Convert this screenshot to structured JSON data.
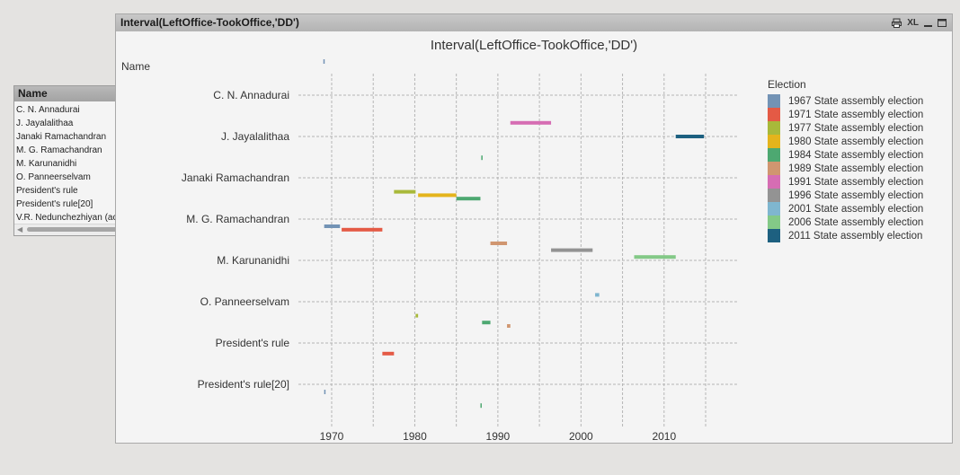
{
  "listbox": {
    "title": "Name",
    "items": [
      "C. N. Annadurai",
      "J. Jayalalithaa",
      "Janaki Ramachandran",
      "M. G. Ramachandran",
      "M. Karunanidhi",
      "O. Panneerselvam",
      "President's rule",
      "President's rule[20]",
      "V.R. Nedunchezhiyan (acting"
    ]
  },
  "window": {
    "title": "Interval(LeftOffice-TookOffice,'DD')",
    "icons": [
      "print-icon",
      "xl-icon",
      "minimize-icon",
      "maximize-icon"
    ],
    "xl_label": "XL"
  },
  "chart_data": {
    "type": "bar",
    "orientation": "gantt",
    "title": "Interval(LeftOffice-TookOffice,'DD')",
    "ylabel": "Name",
    "xlim": [
      1966,
      2019
    ],
    "xticks": [
      1970,
      1980,
      1990,
      2000,
      2010
    ],
    "grid": true,
    "legend_title": "Election",
    "legend_position": "right",
    "categories": [
      "C. N. Annadurai",
      "J. Jayalalithaa",
      "Janaki Ramachandran",
      "M. G. Ramachandran",
      "M. Karunanidhi",
      "O. Panneerselvam",
      "President's rule",
      "President's rule[20]",
      "V.R. Nedunchezhiyan (acting"
    ],
    "series": [
      {
        "name": "1967 State assembly election",
        "color": "#7393b5",
        "bars": [
          {
            "category": "C. N. Annadurai",
            "start": 1969.0,
            "end": 1969.1
          },
          {
            "category": "M. Karunanidhi",
            "start": 1969.1,
            "end": 1971.0
          },
          {
            "category": "V.R. Nedunchezhiyan (acting",
            "start": 1969.1,
            "end": 1969.2
          }
        ]
      },
      {
        "name": "1971 State assembly election",
        "color": "#e45a45",
        "bars": [
          {
            "category": "M. Karunanidhi",
            "start": 1971.2,
            "end": 1976.1
          },
          {
            "category": "President's rule[20]",
            "start": 1976.1,
            "end": 1977.5
          }
        ]
      },
      {
        "name": "1977 State assembly election",
        "color": "#a8b93a",
        "bars": [
          {
            "category": "M. G. Ramachandran",
            "start": 1977.5,
            "end": 1980.1
          },
          {
            "category": "President's rule",
            "start": 1980.1,
            "end": 1980.4
          }
        ]
      },
      {
        "name": "1980 State assembly election",
        "color": "#e4b41c",
        "bars": [
          {
            "category": "M. G. Ramachandran",
            "start": 1980.4,
            "end": 1985.0
          }
        ]
      },
      {
        "name": "1984 State assembly election",
        "color": "#4da871",
        "bars": [
          {
            "category": "M. G. Ramachandran",
            "start": 1985.0,
            "end": 1987.9
          },
          {
            "category": "Janaki Ramachandran",
            "start": 1988.0,
            "end": 1988.1
          },
          {
            "category": "President's rule",
            "start": 1988.1,
            "end": 1989.1
          },
          {
            "category": "V.R. Nedunchezhiyan (acting",
            "start": 1987.9,
            "end": 1988.0
          }
        ]
      },
      {
        "name": "1989 State assembly election",
        "color": "#d09670",
        "bars": [
          {
            "category": "M. Karunanidhi",
            "start": 1989.1,
            "end": 1991.1
          },
          {
            "category": "President's rule",
            "start": 1991.1,
            "end": 1991.5
          }
        ]
      },
      {
        "name": "1991 State assembly election",
        "color": "#d66db3",
        "bars": [
          {
            "category": "J. Jayalalithaa",
            "start": 1991.5,
            "end": 1996.4
          }
        ]
      },
      {
        "name": "1996 State assembly election",
        "color": "#939393",
        "bars": [
          {
            "category": "M. Karunanidhi",
            "start": 1996.4,
            "end": 2001.4
          }
        ]
      },
      {
        "name": "2001 State assembly election",
        "color": "#7fb6cf",
        "bars": [
          {
            "category": "O. Panneerselvam",
            "start": 2001.7,
            "end": 2002.2
          }
        ]
      },
      {
        "name": "2006 State assembly election",
        "color": "#83c987",
        "bars": [
          {
            "category": "M. Karunanidhi",
            "start": 2006.4,
            "end": 2011.4
          }
        ]
      },
      {
        "name": "2011 State assembly election",
        "color": "#1d6080",
        "bars": [
          {
            "category": "J. Jayalalithaa",
            "start": 2011.4,
            "end": 2014.8
          }
        ]
      }
    ]
  }
}
